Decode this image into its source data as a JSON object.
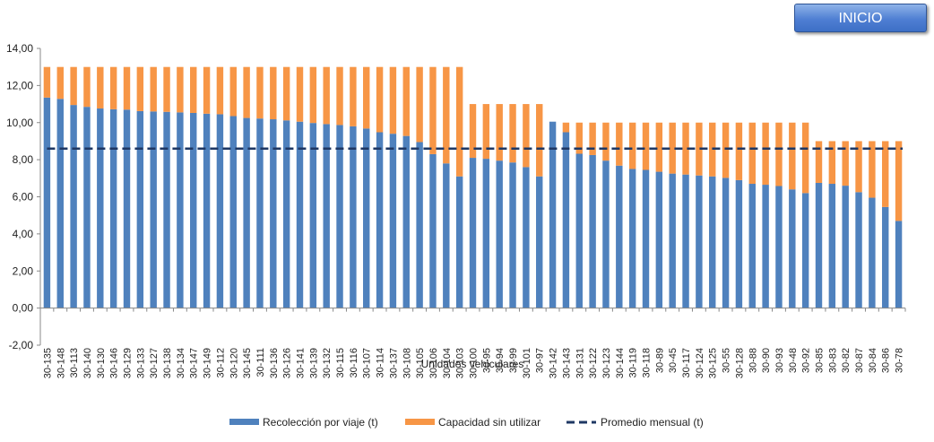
{
  "button": {
    "label": "INICIO"
  },
  "chart_data": {
    "type": "bar",
    "stacked": true,
    "xlabel": "Unidades vehiculares",
    "ylabel": "",
    "ylim": [
      -2,
      14
    ],
    "yticks": [
      "-2,00",
      "0,00",
      "2,00",
      "4,00",
      "6,00",
      "8,00",
      "10,00",
      "12,00",
      "14,00"
    ],
    "grid": false,
    "legend_position": "bottom",
    "colors": {
      "collection": "#4f81bd",
      "unused": "#f79646",
      "average": "#1f3864"
    },
    "categories": [
      "30-135",
      "30-148",
      "30-113",
      "30-140",
      "30-130",
      "30-146",
      "30-129",
      "30-133",
      "30-127",
      "30-138",
      "30-134",
      "30-147",
      "30-149",
      "30-112",
      "30-120",
      "30-145",
      "30-111",
      "30-136",
      "30-126",
      "30-141",
      "30-139",
      "30-132",
      "30-115",
      "30-116",
      "30-107",
      "30-114",
      "30-137",
      "30-108",
      "30-105",
      "30-106",
      "30-104",
      "30-103",
      "30-100",
      "30-95",
      "30-94",
      "30-99",
      "30-101",
      "30-97",
      "30-142",
      "30-143",
      "30-131",
      "30-122",
      "30-123",
      "30-144",
      "30-119",
      "30-118",
      "30-89",
      "30-45",
      "30-117",
      "30-124",
      "30-125",
      "30-55",
      "30-128",
      "30-88",
      "30-90",
      "30-93",
      "30-48",
      "30-92",
      "30-85",
      "30-83",
      "30-82",
      "30-87",
      "30-84",
      "30-86",
      "30-78"
    ],
    "series": [
      {
        "name": "Recolección por viaje (t)",
        "values": [
          11.35,
          11.28,
          10.95,
          10.85,
          10.76,
          10.72,
          10.7,
          10.62,
          10.6,
          10.58,
          10.55,
          10.52,
          10.48,
          10.45,
          10.35,
          10.25,
          10.22,
          10.18,
          10.12,
          10.05,
          9.98,
          9.92,
          9.87,
          9.8,
          9.68,
          9.48,
          9.4,
          9.28,
          8.95,
          8.3,
          7.8,
          7.1,
          8.1,
          8.05,
          7.95,
          7.85,
          7.6,
          7.1,
          10.05,
          9.48,
          8.32,
          8.25,
          7.95,
          7.68,
          7.5,
          7.45,
          7.35,
          7.25,
          7.2,
          7.15,
          7.1,
          7.02,
          6.9,
          6.7,
          6.65,
          6.58,
          6.4,
          6.2,
          6.75,
          6.7,
          6.6,
          6.25,
          5.95,
          5.45,
          4.7
        ]
      },
      {
        "name": "Capacidad sin utilizar",
        "values": [
          1.65,
          1.72,
          2.05,
          2.15,
          2.24,
          2.28,
          2.3,
          2.38,
          2.4,
          2.42,
          2.45,
          2.48,
          2.52,
          2.55,
          2.65,
          2.75,
          2.78,
          2.82,
          2.88,
          2.95,
          3.02,
          3.08,
          3.13,
          3.2,
          3.32,
          3.52,
          3.6,
          3.72,
          4.05,
          4.7,
          5.2,
          5.9,
          2.9,
          2.95,
          3.05,
          3.15,
          3.4,
          3.9,
          0.0,
          0.52,
          1.68,
          1.75,
          2.05,
          2.32,
          2.5,
          2.55,
          2.65,
          2.75,
          2.8,
          2.85,
          2.9,
          2.98,
          3.1,
          3.3,
          3.35,
          3.42,
          3.6,
          3.8,
          2.25,
          2.3,
          2.4,
          2.75,
          3.05,
          3.55,
          4.3
        ]
      }
    ],
    "average": {
      "name": "Promedio mensual (t)",
      "value": 8.6
    }
  }
}
